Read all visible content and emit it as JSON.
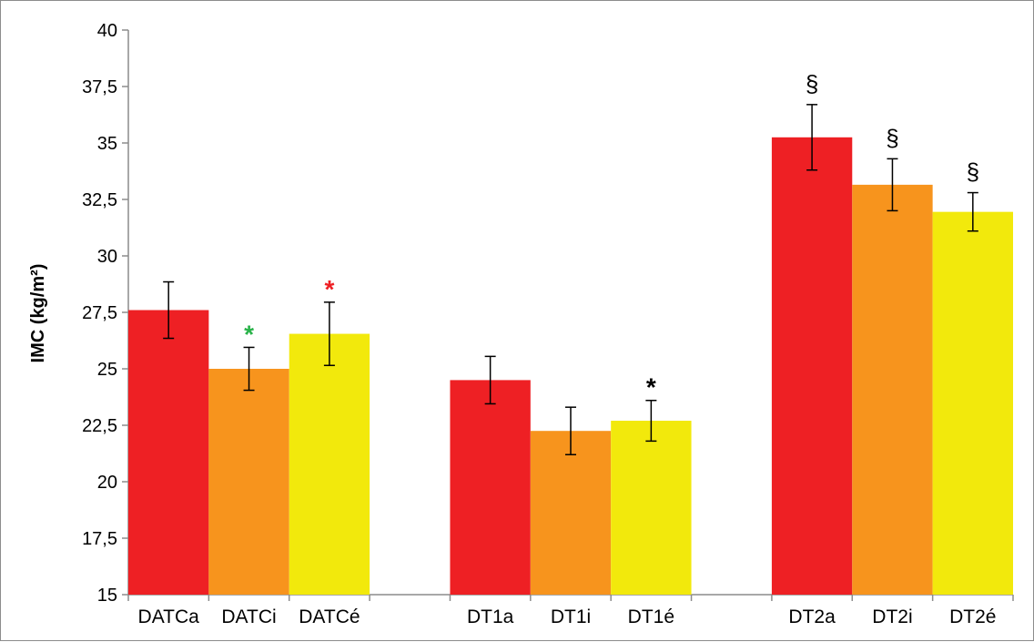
{
  "chart_data": {
    "type": "bar",
    "title": "",
    "xlabel": "",
    "ylabel": "IMC (kg/m²)",
    "ylim": [
      15,
      40
    ],
    "y_ticks": [
      "15",
      "17,5",
      "20",
      "22,5",
      "25",
      "27,5",
      "30",
      "32,5",
      "35",
      "37,5",
      "40"
    ],
    "y_tick_values": [
      15,
      17.5,
      20,
      22.5,
      25,
      27.5,
      30,
      32.5,
      35,
      37.5,
      40
    ],
    "grid": false,
    "legend": "none",
    "groups": [
      {
        "categories": [
          "DATCa",
          "DATCi",
          "DATCé"
        ],
        "values": [
          27.6,
          25.0,
          26.55
        ],
        "errors": [
          1.25,
          0.95,
          1.4
        ]
      },
      {
        "categories": [
          "DT1a",
          "DT1i",
          "DT1é"
        ],
        "values": [
          24.5,
          22.25,
          22.7
        ],
        "errors": [
          1.05,
          1.05,
          0.9
        ]
      },
      {
        "categories": [
          "DT2a",
          "DT2i",
          "DT2é"
        ],
        "values": [
          35.25,
          33.15,
          31.95
        ],
        "errors": [
          1.45,
          1.15,
          0.85
        ]
      }
    ],
    "bar_colors": [
      "#ee2024",
      "#f7941d",
      "#f2e90c"
    ],
    "annotations": [
      {
        "bar": "DATCi",
        "text": "*",
        "color": "#2ab34a"
      },
      {
        "bar": "DATCé",
        "text": "*",
        "color": "#ee2024"
      },
      {
        "bar": "DT1é",
        "text": "*",
        "color": "#000000"
      },
      {
        "bar": "DT2a",
        "text": "§",
        "color": "#000000"
      },
      {
        "bar": "DT2i",
        "text": "§",
        "color": "#000000"
      },
      {
        "bar": "DT2é",
        "text": "§",
        "color": "#000000"
      }
    ]
  }
}
